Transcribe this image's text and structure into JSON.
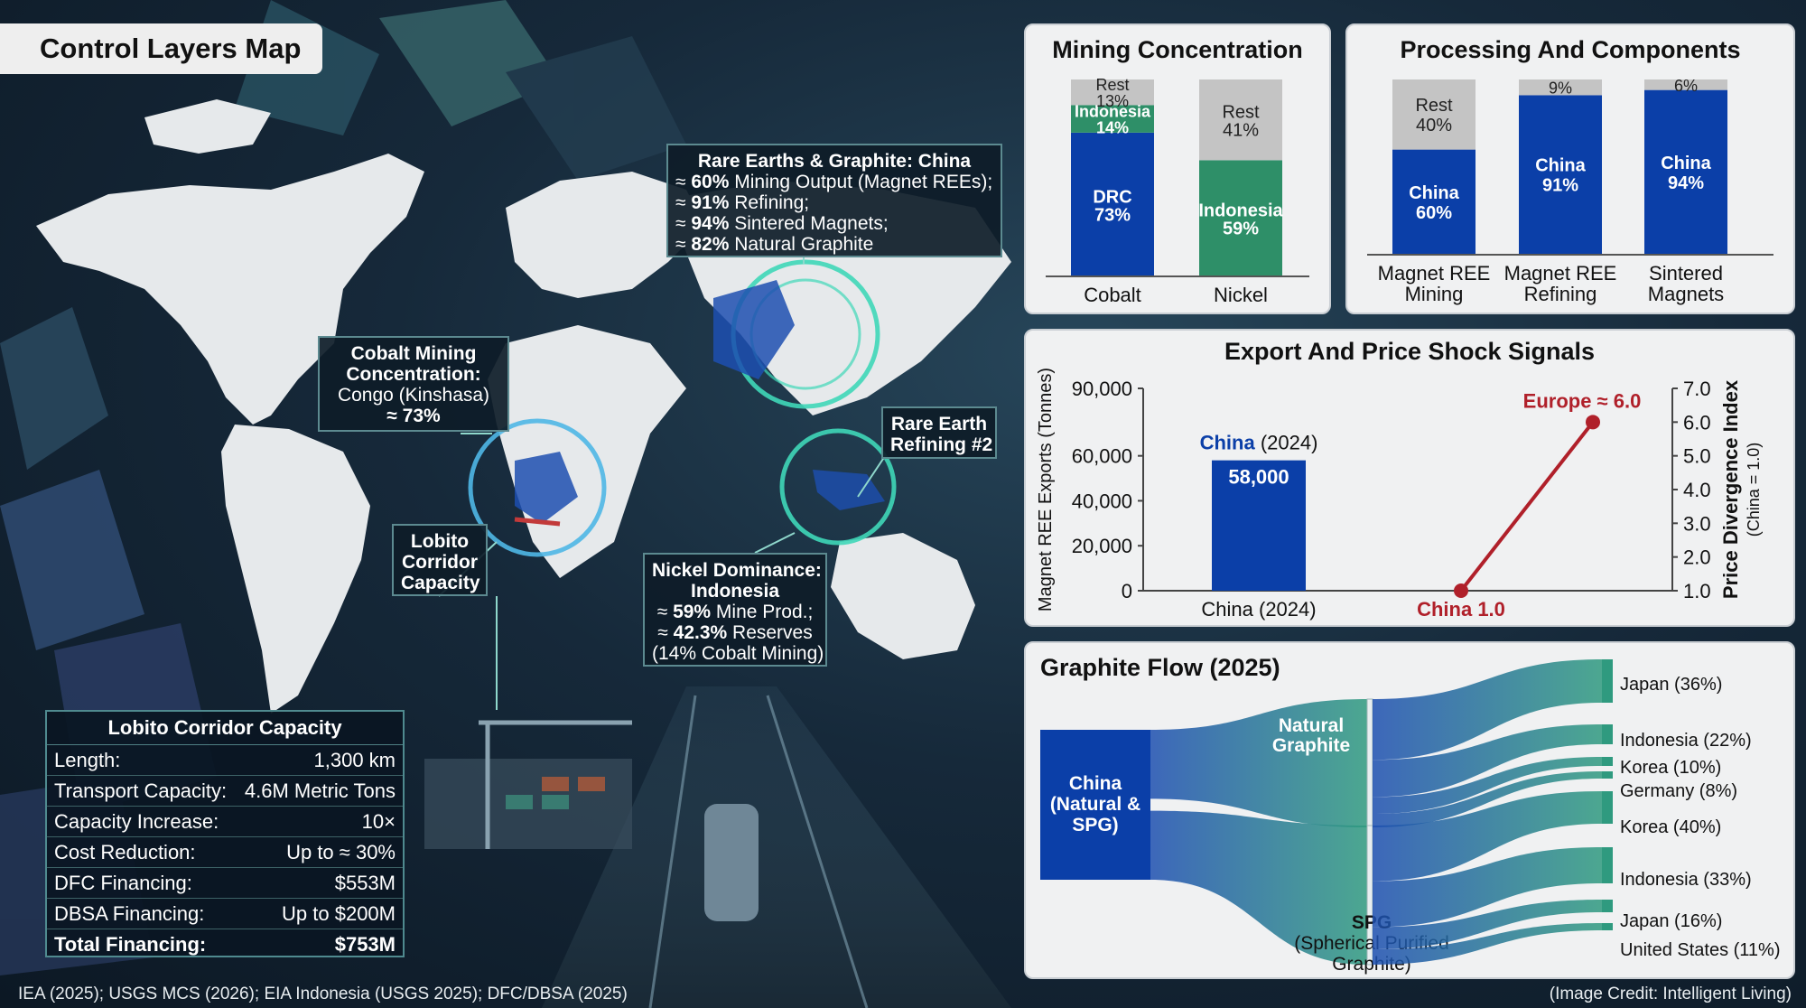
{
  "title": "Control Layers Map",
  "map_annotations": {
    "china": {
      "heading": "Rare Earths & Graphite: China",
      "lines": [
        {
          "prefix": "≈ ",
          "bold": "60%",
          "rest": " Mining Output (Magnet REEs);"
        },
        {
          "prefix": "≈ ",
          "bold": "91%",
          "rest": " Refining;"
        },
        {
          "prefix": "≈ ",
          "bold": "94%",
          "rest": " Sintered Magnets;"
        },
        {
          "prefix": "≈ ",
          "bold": "82%",
          "rest": " Natural Graphite"
        }
      ]
    },
    "cobalt": {
      "line1": "Cobalt Mining",
      "line2": "Concentration:",
      "line3": "Congo (Kinshasa)",
      "line4": "≈ 73%"
    },
    "lobito": {
      "line1": "Lobito",
      "line2": "Corridor",
      "line3": "Capacity"
    },
    "rare_earth_refining": {
      "line1": "Rare Earth",
      "line2": "Refining #2"
    },
    "nickel": {
      "line1": "Nickel Dominance:",
      "line2": "Indonesia",
      "line3_prefix": "≈ ",
      "line3_bold": "59%",
      "line3_rest": " Mine Prod.;",
      "line4_prefix": "≈ ",
      "line4_bold": "42.3%",
      "line4_rest": " Reserves",
      "line5": "(14% Cobalt Mining)"
    }
  },
  "lobito_table": {
    "title": "Lobito Corridor Capacity",
    "rows": [
      {
        "label": "Length:",
        "value": "1,300 km"
      },
      {
        "label": "Transport Capacity:",
        "value": "4.6M Metric Tons"
      },
      {
        "label": "Capacity Increase:",
        "value": "10×"
      },
      {
        "label": "Cost Reduction:",
        "value": "Up to ≈ 30%"
      },
      {
        "label": "DFC Financing:",
        "value": "$553M"
      },
      {
        "label": "DBSA Financing:",
        "value": "Up to $200M"
      }
    ],
    "total": {
      "label": "Total Financing:",
      "value": "$753M"
    }
  },
  "footer": {
    "sources": "IEA (2025); USGS MCS (2026); EIA Indonesia (USGS 2025); DFC/DBSA (2025)",
    "credit": "(Image Credit: Intelligent Living)"
  },
  "colors": {
    "china_blue": "#0b3fa8",
    "indonesia_green": "#2e8f68",
    "rest_gray": "#c4c4c4",
    "europe_red": "#b0202a",
    "teal_flow": "#2f9a7f"
  },
  "chart_data": [
    {
      "type": "bar",
      "stacked": true,
      "title": "Mining Concentration",
      "categories": [
        "Cobalt",
        "Nickel"
      ],
      "series": [
        {
          "name": "DRC",
          "values": [
            73,
            0
          ],
          "labels": [
            "DRC",
            ""
          ]
        },
        {
          "name": "Indonesia",
          "values": [
            14,
            59
          ],
          "labels": [
            "Indonesia",
            "Indonesia"
          ]
        },
        {
          "name": "Rest",
          "values": [
            13,
            41
          ],
          "labels": [
            "Rest",
            "Rest"
          ]
        }
      ],
      "ylim": [
        0,
        100
      ]
    },
    {
      "type": "bar",
      "stacked": true,
      "title": "Processing And Components",
      "categories": [
        "Magnet REE Mining",
        "Magnet REE Refining",
        "Sintered Magnets"
      ],
      "category_lines": [
        [
          "Magnet REE",
          "Mining"
        ],
        [
          "Magnet REE",
          "Refining"
        ],
        [
          "Sintered",
          "Magnets"
        ]
      ],
      "series": [
        {
          "name": "China",
          "values": [
            60,
            91,
            94
          ],
          "labels": [
            "China",
            "China",
            "China"
          ]
        },
        {
          "name": "Rest",
          "values": [
            40,
            9,
            6
          ],
          "labels": [
            "Rest",
            "",
            ""
          ]
        }
      ],
      "ylim": [
        0,
        100
      ]
    },
    {
      "type": "bar+line",
      "title": "Export And Price Shock Signals",
      "bar": {
        "category": "China (2024)",
        "label_name": "China",
        "label_year": " (2024)",
        "value": 58000,
        "value_label": "58,000"
      },
      "ylabel_left": "Magnet REE Exports (Tonnes)",
      "ylim_left": [
        0,
        90000
      ],
      "yticks_left": [
        0,
        20000,
        40000,
        60000,
        90000
      ],
      "ytick_labels_left": [
        "0",
        "20,000",
        "40,000",
        "60,000",
        "90,000"
      ],
      "ylabel_right": "Price Divergence Index",
      "ylabel_right_sub": "(China = 1.0)",
      "ylim_right": [
        1.0,
        7.0
      ],
      "yticks_right": [
        "1.0",
        "2.0",
        "3.0",
        "4.0",
        "5.0",
        "6.0",
        "7.0"
      ],
      "line_points": [
        {
          "name": "China",
          "value": 1.0,
          "label": "China 1.0"
        },
        {
          "name": "Europe",
          "value": 6.0,
          "label": "Europe ≈ 6.0"
        }
      ]
    },
    {
      "type": "sankey",
      "title": "Graphite Flow (2025)",
      "source": {
        "lines": [
          "China",
          "(Natural &",
          "SPG)"
        ]
      },
      "intermediates": [
        {
          "name": "Natural Graphite",
          "lines": [
            "Natural",
            "Graphite"
          ]
        },
        {
          "name": "SPG",
          "lines": [
            "SPG",
            "(Spherical Purified",
            "Graphite)"
          ]
        }
      ],
      "flows": [
        {
          "from": "Natural Graphite",
          "to": "Japan",
          "value": 36,
          "label": "Japan (36%)"
        },
        {
          "from": "Natural Graphite",
          "to": "Indonesia",
          "value": 22,
          "label": "Indonesia (22%)"
        },
        {
          "from": "Natural Graphite",
          "to": "Korea",
          "value": 10,
          "label": "Korea (10%)"
        },
        {
          "from": "Natural Graphite",
          "to": "Germany",
          "value": 8,
          "label": "Germany (8%)"
        },
        {
          "from": "SPG",
          "to": "Korea",
          "value": 40,
          "label": "Korea (40%)"
        },
        {
          "from": "SPG",
          "to": "Indonesia",
          "value": 33,
          "label": "Indonesia (33%)"
        },
        {
          "from": "SPG",
          "to": "Japan",
          "value": 16,
          "label": "Japan (16%)"
        },
        {
          "from": "SPG",
          "to": "United States",
          "value": 11,
          "label": "United States (11%)"
        }
      ]
    }
  ]
}
